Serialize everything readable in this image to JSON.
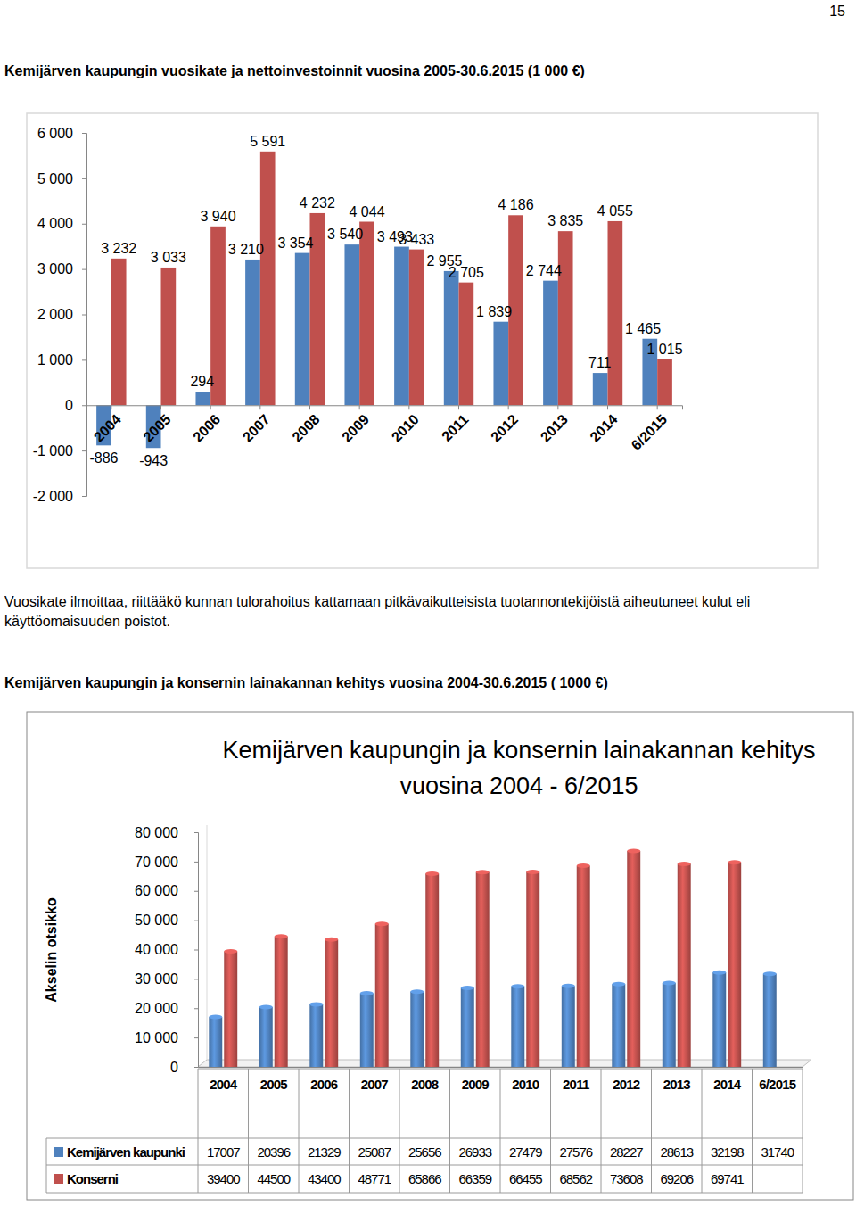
{
  "page": {
    "number": "15",
    "note": "Vuosikate ilmoittaa, riittääkö kunnan tulorahoitus kattamaan pitkävaikutteisista tuotannontekijöistä aiheutuneet kulut eli käyttöomaisuuden poistot.",
    "heading": "Kemijärven kaupungin ja konsernin lainakannan kehitys vuosina 2004-30.6.2015 ( 1000 €)"
  },
  "chart_data": [
    {
      "type": "bar",
      "title": "Kemijärven kaupungin vuosikate ja nettoinvestoinnit vuosina 2005-30.6.2015 (1 000 €)",
      "categories": [
        "2004",
        "2005",
        "2006",
        "2007",
        "2008",
        "2009",
        "2010",
        "2011",
        "2012",
        "2013",
        "2014",
        "6/2015"
      ],
      "series": [
        {
          "color": "#4f81bd",
          "values": [
            -886,
            -943,
            294,
            3210,
            3354,
            3540,
            3493,
            2955,
            1839,
            2744,
            711,
            1465
          ],
          "value_labels": [
            "-886",
            "-943",
            "294",
            "3 210",
            "3 354",
            "3 540",
            "3 493",
            "2 955",
            "1 839",
            "2 744",
            "711",
            "1 465"
          ]
        },
        {
          "color": "#c0504d",
          "values": [
            3232,
            3033,
            3940,
            5591,
            4232,
            4044,
            3433,
            2705,
            4186,
            3835,
            4055,
            1015
          ],
          "value_labels": [
            "3 232",
            "3 033",
            "3 940",
            "5 591",
            "4 232",
            "4 044",
            "3 433",
            "2 705",
            "4 186",
            "3 835",
            "4 055",
            "1 015"
          ]
        }
      ],
      "ylim": [
        -2000,
        6000
      ],
      "yticks": [
        {
          "value": -2000,
          "label": "-2 000"
        },
        {
          "value": -1000,
          "label": "-1 000"
        },
        0,
        {
          "value": 1000,
          "label": "1 000"
        },
        {
          "value": 2000,
          "label": "2 000"
        },
        {
          "value": 3000,
          "label": "3 000"
        },
        {
          "value": 4000,
          "label": "4 000"
        },
        {
          "value": 5000,
          "label": "5 000"
        },
        {
          "value": 6000,
          "label": "6 000"
        }
      ],
      "grid": false,
      "data_labels": true
    },
    {
      "type": "bar",
      "title": "Kemijärven kaupungin ja konsernin lainakannan kehitys vuosina 2004 - 6/2015",
      "ylabel": "Akselin otsikko",
      "categories": [
        "2004",
        "2005",
        "2006",
        "2007",
        "2008",
        "2009",
        "2010",
        "2011",
        "2012",
        "2013",
        "2014",
        "6/2015"
      ],
      "series": [
        {
          "name": "Kemijärven kaupunki",
          "color": "#4f81bd",
          "values": [
            17007,
            20396,
            21329,
            25087,
            25656,
            26933,
            27479,
            27576,
            28227,
            28613,
            32198,
            31740
          ]
        },
        {
          "name": "Konserni",
          "color": "#c0504d",
          "values": [
            39400,
            44500,
            43400,
            48771,
            65866,
            66359,
            66455,
            68562,
            73608,
            69206,
            69741,
            null
          ]
        }
      ],
      "ylim": [
        0,
        80000
      ],
      "yticks": [
        0,
        {
          "value": 10000,
          "label": "10 000"
        },
        {
          "value": 20000,
          "label": "20 000"
        },
        {
          "value": 30000,
          "label": "30 000"
        },
        {
          "value": 40000,
          "label": "40 000"
        },
        {
          "value": 50000,
          "label": "50 000"
        },
        {
          "value": 60000,
          "label": "60 000"
        },
        {
          "value": 70000,
          "label": "70 000"
        },
        {
          "value": 80000,
          "label": "80 000"
        }
      ],
      "grid": false
    }
  ]
}
